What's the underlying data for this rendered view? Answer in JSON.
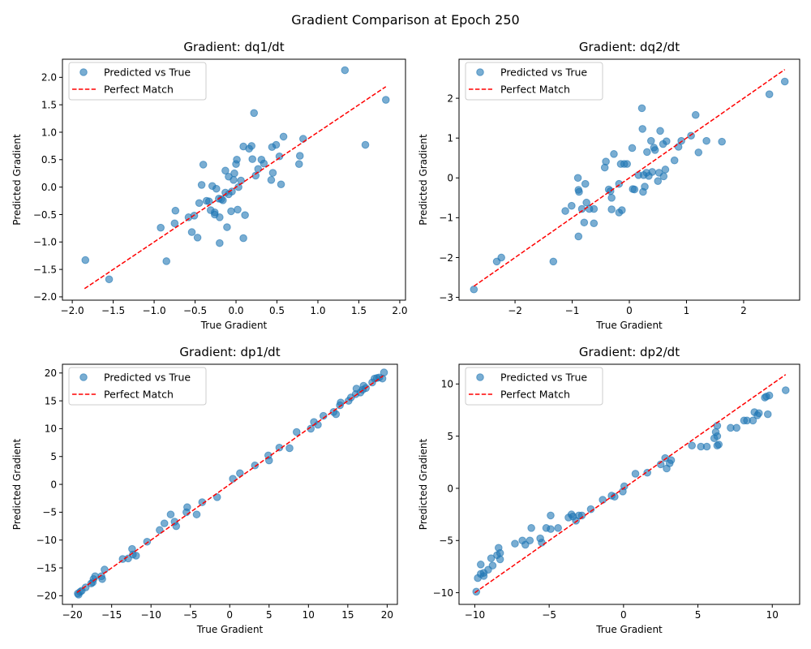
{
  "figure": {
    "title": "Gradient Comparison at Epoch 250"
  },
  "legend": {
    "scatter_label": "Predicted vs True",
    "line_label": "Perfect Match",
    "location": "upper-left"
  },
  "colors": {
    "scatter": "#1f77b4",
    "perfect_line": "#ff0000",
    "axes": "#000000",
    "legend_border": "#cccccc"
  },
  "chart_data": [
    {
      "type": "scatter",
      "title": "Gradient: dq1/dt",
      "xlabel": "True Gradient",
      "ylabel": "Predicted Gradient",
      "xlim": [
        -2.12,
        2.07
      ],
      "ylim": [
        -2.06,
        2.33
      ],
      "xticks": [
        -2.0,
        -1.5,
        -1.0,
        -0.5,
        0.0,
        0.5,
        1.0,
        1.5,
        2.0
      ],
      "xtick_labels": [
        "−2.0",
        "−1.5",
        "−1.0",
        "−0.5",
        "0.0",
        "0.5",
        "1.0",
        "1.5",
        "2.0"
      ],
      "yticks": [
        -2.0,
        -1.5,
        -1.0,
        -0.5,
        0.0,
        0.5,
        1.0,
        1.5,
        2.0
      ],
      "ytick_labels": [
        "−2.0",
        "−1.5",
        "−1.0",
        "−0.5",
        "0.0",
        "0.5",
        "1.0",
        "1.5",
        "2.0"
      ],
      "grid": false,
      "legend": "upper-left",
      "perfect_match_range": [
        -1.85,
        1.83
      ],
      "points": [
        [
          -1.84,
          -1.33
        ],
        [
          -1.55,
          -1.68
        ],
        [
          -0.92,
          -0.74
        ],
        [
          -0.85,
          -1.35
        ],
        [
          -0.74,
          -0.43
        ],
        [
          -0.75,
          -0.66
        ],
        [
          -0.58,
          -0.55
        ],
        [
          -0.54,
          -0.82
        ],
        [
          -0.51,
          -0.52
        ],
        [
          -0.47,
          -0.92
        ],
        [
          -0.45,
          -0.29
        ],
        [
          -0.42,
          0.04
        ],
        [
          -0.4,
          0.41
        ],
        [
          -0.36,
          -0.25
        ],
        [
          -0.33,
          -0.26
        ],
        [
          -0.29,
          0.02
        ],
        [
          -0.31,
          -0.42
        ],
        [
          -0.26,
          -0.46
        ],
        [
          -0.26,
          -0.5
        ],
        [
          -0.24,
          -0.03
        ],
        [
          -0.21,
          -0.21
        ],
        [
          -0.2,
          -0.55
        ],
        [
          -0.2,
          -1.02
        ],
        [
          -0.18,
          -0.22
        ],
        [
          -0.16,
          -0.24
        ],
        [
          -0.13,
          0.3
        ],
        [
          -0.13,
          -0.1
        ],
        [
          -0.11,
          -0.73
        ],
        [
          -0.09,
          0.19
        ],
        [
          -0.09,
          -0.13
        ],
        [
          -0.06,
          -0.44
        ],
        [
          -0.05,
          -0.08
        ],
        [
          -0.03,
          0.13
        ],
        [
          -0.02,
          0.25
        ],
        [
          0.0,
          0.42
        ],
        [
          0.01,
          0.5
        ],
        [
          0.02,
          -0.41
        ],
        [
          0.03,
          0.0
        ],
        [
          0.06,
          0.12
        ],
        [
          0.09,
          0.74
        ],
        [
          0.09,
          -0.93
        ],
        [
          0.11,
          -0.51
        ],
        [
          0.16,
          0.7
        ],
        [
          0.19,
          0.75
        ],
        [
          0.2,
          0.51
        ],
        [
          0.22,
          1.35
        ],
        [
          0.24,
          0.21
        ],
        [
          0.27,
          0.33
        ],
        [
          0.31,
          0.5
        ],
        [
          0.34,
          0.43
        ],
        [
          0.43,
          0.13
        ],
        [
          0.44,
          0.73
        ],
        [
          0.45,
          0.26
        ],
        [
          0.49,
          0.77
        ],
        [
          0.53,
          0.56
        ],
        [
          0.55,
          0.05
        ],
        [
          0.58,
          0.92
        ],
        [
          0.77,
          0.42
        ],
        [
          0.78,
          0.57
        ],
        [
          0.82,
          0.88
        ],
        [
          1.33,
          2.13
        ],
        [
          1.58,
          0.77
        ],
        [
          1.83,
          1.59
        ]
      ]
    },
    {
      "type": "scatter",
      "title": "Gradient: dq2/dt",
      "xlabel": "True Gradient",
      "ylabel": "Predicted Gradient",
      "xlim": [
        -2.98,
        2.98
      ],
      "ylim": [
        -3.07,
        2.98
      ],
      "xticks": [
        -2,
        -1,
        0,
        1,
        2
      ],
      "xtick_labels": [
        "−2",
        "−1",
        "0",
        "1",
        "2"
      ],
      "yticks": [
        -3,
        -2,
        -1,
        0,
        1,
        2
      ],
      "ytick_labels": [
        "−3",
        "−2",
        "−1",
        "0",
        "1",
        "2"
      ],
      "grid": false,
      "legend": "upper-left",
      "perfect_match_range": [
        -2.72,
        2.72
      ],
      "points": [
        [
          -2.72,
          -2.8
        ],
        [
          -2.32,
          -2.1
        ],
        [
          -2.24,
          -2.0
        ],
        [
          -1.33,
          -2.1
        ],
        [
          -1.12,
          -0.83
        ],
        [
          -1.01,
          -0.7
        ],
        [
          -0.9,
          0.0
        ],
        [
          -0.89,
          -1.47
        ],
        [
          -0.89,
          -0.3
        ],
        [
          -0.88,
          -0.35
        ],
        [
          -0.83,
          -0.78
        ],
        [
          -0.79,
          -1.12
        ],
        [
          -0.77,
          -0.15
        ],
        [
          -0.75,
          -0.62
        ],
        [
          -0.7,
          -0.78
        ],
        [
          -0.62,
          -0.78
        ],
        [
          -0.62,
          -1.14
        ],
        [
          -0.43,
          0.26
        ],
        [
          -0.41,
          0.41
        ],
        [
          -0.36,
          -0.29
        ],
        [
          -0.33,
          -0.33
        ],
        [
          -0.31,
          -0.5
        ],
        [
          -0.31,
          -0.79
        ],
        [
          -0.27,
          0.6
        ],
        [
          -0.18,
          -0.87
        ],
        [
          -0.18,
          -0.15
        ],
        [
          -0.15,
          0.35
        ],
        [
          -0.13,
          -0.81
        ],
        [
          -0.09,
          0.35
        ],
        [
          -0.04,
          0.35
        ],
        [
          0.05,
          0.75
        ],
        [
          0.06,
          -0.28
        ],
        [
          0.09,
          -0.29
        ],
        [
          0.16,
          0.07
        ],
        [
          0.22,
          1.75
        ],
        [
          0.23,
          1.23
        ],
        [
          0.24,
          -0.35
        ],
        [
          0.25,
          0.07
        ],
        [
          0.27,
          -0.22
        ],
        [
          0.3,
          0.13
        ],
        [
          0.31,
          0.65
        ],
        [
          0.34,
          0.05
        ],
        [
          0.38,
          0.93
        ],
        [
          0.4,
          0.15
        ],
        [
          0.43,
          0.76
        ],
        [
          0.45,
          0.7
        ],
        [
          0.5,
          -0.08
        ],
        [
          0.52,
          0.13
        ],
        [
          0.54,
          1.18
        ],
        [
          0.59,
          0.85
        ],
        [
          0.6,
          0.04
        ],
        [
          0.63,
          0.21
        ],
        [
          0.65,
          0.92
        ],
        [
          0.79,
          0.44
        ],
        [
          0.86,
          0.78
        ],
        [
          0.91,
          0.93
        ],
        [
          1.08,
          1.06
        ],
        [
          1.16,
          1.58
        ],
        [
          1.21,
          0.64
        ],
        [
          1.35,
          0.93
        ],
        [
          1.62,
          0.91
        ],
        [
          2.45,
          2.1
        ],
        [
          2.72,
          2.42
        ]
      ]
    },
    {
      "type": "scatter",
      "title": "Gradient: dp1/dt",
      "xlabel": "True Gradient",
      "ylabel": "Predicted Gradient",
      "xlim": [
        -21.25,
        21.3
      ],
      "ylim": [
        -21.55,
        21.57
      ],
      "xticks": [
        -20,
        -15,
        -10,
        -5,
        0,
        5,
        10,
        15,
        20
      ],
      "xtick_labels": [
        "−20",
        "−15",
        "−10",
        "−5",
        "0",
        "5",
        "10",
        "15",
        "20"
      ],
      "yticks": [
        -20,
        -15,
        -10,
        -5,
        0,
        5,
        10,
        15,
        20
      ],
      "ytick_labels": [
        "−20",
        "−15",
        "−10",
        "−5",
        "0",
        "5",
        "10",
        "15",
        "20"
      ],
      "grid": false,
      "legend": "upper-left",
      "perfect_match_range": [
        -19.4,
        19.5
      ],
      "points": [
        [
          -19.3,
          -19.6
        ],
        [
          -19.0,
          -19.3
        ],
        [
          -19.2,
          -19.8
        ],
        [
          -18.8,
          -19.1
        ],
        [
          -18.3,
          -18.5
        ],
        [
          -17.6,
          -17.8
        ],
        [
          -17.4,
          -17.6
        ],
        [
          -17.3,
          -17.0
        ],
        [
          -17.1,
          -16.5
        ],
        [
          -16.3,
          -16.5
        ],
        [
          -16.2,
          -17.0
        ],
        [
          -15.9,
          -15.3
        ],
        [
          -13.6,
          -13.4
        ],
        [
          -12.9,
          -13.3
        ],
        [
          -12.4,
          -11.6
        ],
        [
          -12.3,
          -12.6
        ],
        [
          -11.9,
          -12.8
        ],
        [
          -10.5,
          -10.3
        ],
        [
          -8.9,
          -8.2
        ],
        [
          -8.3,
          -7.0
        ],
        [
          -7.5,
          -5.4
        ],
        [
          -7.0,
          -6.7
        ],
        [
          -6.8,
          -7.5
        ],
        [
          -5.5,
          -5.0
        ],
        [
          -5.4,
          -4.1
        ],
        [
          -4.2,
          -5.4
        ],
        [
          -3.5,
          -3.2
        ],
        [
          -1.6,
          -2.3
        ],
        [
          0.4,
          1.0
        ],
        [
          1.3,
          2.0
        ],
        [
          3.2,
          3.4
        ],
        [
          4.9,
          5.2
        ],
        [
          5.0,
          4.3
        ],
        [
          6.3,
          6.6
        ],
        [
          7.6,
          6.5
        ],
        [
          8.5,
          9.4
        ],
        [
          10.3,
          10.0
        ],
        [
          10.7,
          11.2
        ],
        [
          11.2,
          10.7
        ],
        [
          11.9,
          12.3
        ],
        [
          13.2,
          13.0
        ],
        [
          13.5,
          12.6
        ],
        [
          14.0,
          14.2
        ],
        [
          14.1,
          14.7
        ],
        [
          15.1,
          15.0
        ],
        [
          15.4,
          15.6
        ],
        [
          16.0,
          16.2
        ],
        [
          16.1,
          17.2
        ],
        [
          16.6,
          16.5
        ],
        [
          16.9,
          17.0
        ],
        [
          17.0,
          17.7
        ],
        [
          17.3,
          17.3
        ],
        [
          18.1,
          18.3
        ],
        [
          18.4,
          19.0
        ],
        [
          18.7,
          19.1
        ],
        [
          19.0,
          19.2
        ],
        [
          19.4,
          19.0
        ],
        [
          19.6,
          20.1
        ]
      ]
    },
    {
      "type": "scatter",
      "title": "Gradient: dp2/dt",
      "xlabel": "True Gradient",
      "ylabel": "Predicted Gradient",
      "xlim": [
        -11.06,
        11.84
      ],
      "ylim": [
        -11.12,
        11.89
      ],
      "xticks": [
        -10,
        -5,
        0,
        5,
        10
      ],
      "xtick_labels": [
        "−10",
        "−5",
        "0",
        "5",
        "10"
      ],
      "yticks": [
        -10,
        -5,
        0,
        5,
        10
      ],
      "ytick_labels": [
        "−10",
        "−5",
        "0",
        "5",
        "10"
      ],
      "grid": false,
      "legend": "upper-left",
      "perfect_match_range": [
        -10.0,
        10.9
      ],
      "points": [
        [
          -9.9,
          -9.9
        ],
        [
          -9.8,
          -8.6
        ],
        [
          -9.6,
          -7.3
        ],
        [
          -9.6,
          -8.2
        ],
        [
          -9.4,
          -8.1
        ],
        [
          -9.4,
          -8.4
        ],
        [
          -9.1,
          -7.8
        ],
        [
          -8.9,
          -6.7
        ],
        [
          -8.8,
          -7.4
        ],
        [
          -8.5,
          -6.4
        ],
        [
          -8.4,
          -5.7
        ],
        [
          -8.3,
          -6.8
        ],
        [
          -8.3,
          -6.2
        ],
        [
          -7.3,
          -5.3
        ],
        [
          -6.8,
          -5.0
        ],
        [
          -6.6,
          -5.4
        ],
        [
          -6.3,
          -5.0
        ],
        [
          -6.2,
          -3.8
        ],
        [
          -5.6,
          -4.8
        ],
        [
          -5.5,
          -5.2
        ],
        [
          -5.2,
          -3.8
        ],
        [
          -4.9,
          -3.9
        ],
        [
          -4.9,
          -2.6
        ],
        [
          -4.4,
          -3.8
        ],
        [
          -3.7,
          -2.8
        ],
        [
          -3.5,
          -2.5
        ],
        [
          -3.4,
          -2.7
        ],
        [
          -3.2,
          -3.1
        ],
        [
          -3.0,
          -2.6
        ],
        [
          -2.8,
          -2.6
        ],
        [
          -2.2,
          -2.0
        ],
        [
          -1.4,
          -1.1
        ],
        [
          -0.8,
          -0.7
        ],
        [
          -0.6,
          -0.8
        ],
        [
          -0.05,
          -0.3
        ],
        [
          0.05,
          0.2
        ],
        [
          0.8,
          1.4
        ],
        [
          1.6,
          1.5
        ],
        [
          2.5,
          2.3
        ],
        [
          2.8,
          2.9
        ],
        [
          2.9,
          1.9
        ],
        [
          3.1,
          2.4
        ],
        [
          3.2,
          2.7
        ],
        [
          4.6,
          4.1
        ],
        [
          5.2,
          4.0
        ],
        [
          5.6,
          4.0
        ],
        [
          6.1,
          4.8
        ],
        [
          6.2,
          5.4
        ],
        [
          6.3,
          4.1
        ],
        [
          6.3,
          5.0
        ],
        [
          6.3,
          6.0
        ],
        [
          6.4,
          4.2
        ],
        [
          7.2,
          5.8
        ],
        [
          7.6,
          5.8
        ],
        [
          8.1,
          6.5
        ],
        [
          8.3,
          6.5
        ],
        [
          8.7,
          6.5
        ],
        [
          8.8,
          7.3
        ],
        [
          9.0,
          7.0
        ],
        [
          9.1,
          7.2
        ],
        [
          9.5,
          8.7
        ],
        [
          9.6,
          8.8
        ],
        [
          9.7,
          7.1
        ],
        [
          9.8,
          8.9
        ],
        [
          10.9,
          9.4
        ]
      ]
    }
  ]
}
